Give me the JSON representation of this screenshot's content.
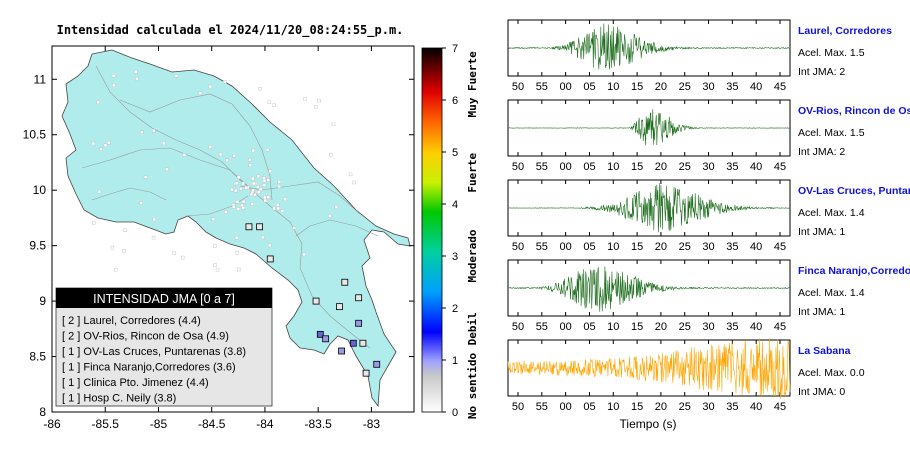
{
  "header": {
    "title": "Intensidad calculada el 2024/11/20_08:24:55_p.m."
  },
  "map": {
    "xlim": [
      -86,
      -82.6
    ],
    "ylim": [
      8,
      11.3
    ],
    "x_ticks": [
      "-86",
      "-85.5",
      "-85",
      "-84.5",
      "-84",
      "-83.5",
      "-83"
    ],
    "y_ticks": [
      "8",
      "8.5",
      "9",
      "9.5",
      "10",
      "10.5",
      "11"
    ],
    "land_color": "#b0ecec",
    "legend": {
      "title": "INTENSIDAD JMA [0 a 7]",
      "items": [
        "[ 2 ]  Laurel, Corredores (4.4)",
        "[ 2 ]  OV-Rios, Rincon de Osa (4.9)",
        "[ 1 ]  OV-Las Cruces, Puntarenas (3.8)",
        "[ 1 ]  Finca Naranjo,Corredores (3.6)",
        "[ 1 ]  Clinica Pto. Jimenez (4.4)",
        "[ 1 ]  Hosp C. Neily (3.8)"
      ]
    },
    "stations": [
      {
        "lon": -83.17,
        "lat": 8.62,
        "level": 2
      },
      {
        "lon": -83.48,
        "lat": 8.7,
        "level": 2
      },
      {
        "lon": -83.12,
        "lat": 8.8,
        "level": 1
      },
      {
        "lon": -83.43,
        "lat": 8.66,
        "level": 1
      },
      {
        "lon": -83.28,
        "lat": 8.55,
        "level": 1
      },
      {
        "lon": -82.95,
        "lat": 8.43,
        "level": 1
      },
      {
        "lon": -83.52,
        "lat": 9.0,
        "level": 0
      },
      {
        "lon": -83.12,
        "lat": 9.03,
        "level": 0
      },
      {
        "lon": -83.3,
        "lat": 8.95,
        "level": 0
      },
      {
        "lon": -83.95,
        "lat": 9.38,
        "level": 0
      },
      {
        "lon": -83.25,
        "lat": 9.17,
        "level": 0
      },
      {
        "lon": -84.15,
        "lat": 9.67,
        "level": 0
      },
      {
        "lon": -84.05,
        "lat": 9.67,
        "level": 0
      },
      {
        "lon": -83.08,
        "lat": 8.62,
        "level": 0
      },
      {
        "lon": -83.05,
        "lat": 8.35,
        "level": 0
      }
    ]
  },
  "colorbar": {
    "ticks": [
      "0",
      "1",
      "2",
      "3",
      "4",
      "5",
      "6",
      "7"
    ],
    "labels": [
      "No sentido",
      "Debil",
      "Moderado",
      "Fuerte",
      "Muy Fuerte"
    ]
  },
  "waveforms": {
    "x_ticks": [
      "50",
      "55",
      "00",
      "05",
      "10",
      "15",
      "20",
      "25",
      "30",
      "35",
      "40",
      "45"
    ],
    "xlabel": "Tiempo (s)",
    "traces": [
      {
        "name": "Laurel, Corredores",
        "acel": "Acel. Max. 1.5",
        "jma": "Int JMA: 2",
        "color": "#1e6e1e",
        "onset": 0.15,
        "peak": 0.33,
        "decay": 0.18,
        "noise": 0.02
      },
      {
        "name": "OV-Rios, Rincon de Osa",
        "acel": "Acel. Max. 1.5",
        "jma": "Int JMA: 2",
        "color": "#1e6e1e",
        "onset": 0.43,
        "peak": 0.5,
        "decay": 0.1,
        "noise": 0.01
      },
      {
        "name": "OV-Las Cruces, Puntarenas",
        "acel": "Acel. Max. 1.4",
        "jma": "Int JMA: 1",
        "color": "#1e6e1e",
        "onset": 0.25,
        "peak": 0.53,
        "decay": 0.22,
        "noise": 0.01
      },
      {
        "name": "Finca Naranjo,Corredores",
        "acel": "Acel. Max. 1.4",
        "jma": "Int JMA: 1",
        "color": "#1e6e1e",
        "onset": 0.1,
        "peak": 0.3,
        "decay": 0.2,
        "noise": 0.02
      },
      {
        "name": "La Sabana",
        "acel": "Acel. Max. 0.0",
        "jma": "Int JMA: 0",
        "color": "#ffa500",
        "onset": 0,
        "peak": 0.9,
        "decay": 0.6,
        "noise": 0.25
      }
    ]
  }
}
